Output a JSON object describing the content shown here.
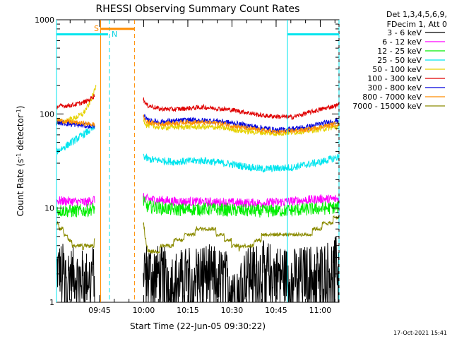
{
  "chart_data": {
    "type": "line",
    "title": "RHESSI Observing Summary Count Rates",
    "xlabel": "Start Time (22-Jun-05 09:30:22)",
    "ylabel": "Count Rate (s⁻¹ detector⁻¹)",
    "ylabel_parts": {
      "base": "Count Rate (s",
      "sup1": "-1",
      "mid": " detector",
      "sup2": "-1",
      "end": ")"
    },
    "yscale": "log",
    "ylim": [
      1,
      1000
    ],
    "xlim_minutes": [
      0,
      96
    ],
    "y_ticks": [
      {
        "value": 1,
        "label": "1"
      },
      {
        "value": 10,
        "label": "10"
      },
      {
        "value": 100,
        "label": "100"
      },
      {
        "value": 1000,
        "label": "1000"
      }
    ],
    "x_ticks": [
      {
        "minute": 14.63,
        "label": "09:45"
      },
      {
        "minute": 29.63,
        "label": "10:00"
      },
      {
        "minute": 44.63,
        "label": "10:15"
      },
      {
        "minute": 59.63,
        "label": "10:30"
      },
      {
        "minute": 74.63,
        "label": "10:45"
      },
      {
        "minute": 89.63,
        "label": "11:00"
      }
    ],
    "legend_header": [
      "Det 1,3,4,5,6,9,",
      "FDecim 1, Att 0"
    ],
    "series": [
      {
        "name": "3 - 6 keV",
        "color": "#000000",
        "segments": [
          {
            "t": [
              0,
              5,
              10,
              13
            ],
            "y": [
              2.3,
              2.0,
              1.8,
              2.2
            ]
          },
          {
            "t": [
              29.5,
              40,
              50,
              60,
              70,
              80,
              90,
              96
            ],
            "y": [
              2.3,
              1.8,
              2.2,
              1.7,
              2.3,
              1.9,
              2.2,
              2.6
            ]
          }
        ]
      },
      {
        "name": "6 - 12 keV",
        "color": "#ff00ff",
        "segments": [
          {
            "t": [
              0,
              5,
              10,
              13
            ],
            "y": [
              12,
              11.8,
              11.5,
              12.5
            ]
          },
          {
            "t": [
              29.5,
              30.5,
              40,
              50,
              60,
              70,
              80,
              90,
              96
            ],
            "y": [
              13,
              12.5,
              11.8,
              11.6,
              11.4,
              11.3,
              11.8,
              12.5,
              12.5
            ]
          }
        ]
      },
      {
        "name": "12 - 25 keV",
        "color": "#00ee00",
        "segments": [
          {
            "t": [
              0,
              5,
              10,
              13
            ],
            "y": [
              9.5,
              9.3,
              9.4,
              10
            ]
          },
          {
            "t": [
              29.5,
              30.5,
              40,
              50,
              60,
              70,
              80,
              90,
              96
            ],
            "y": [
              12,
              10.5,
              9.6,
              9.8,
              9.5,
              9.3,
              9.5,
              9.9,
              10.2
            ]
          }
        ]
      },
      {
        "name": "25 - 50 keV",
        "color": "#00e5ee",
        "segments": [
          {
            "t": [
              0,
              3,
              6,
              9,
              11,
              13
            ],
            "y": [
              40,
              45,
              52,
              60,
              66,
              72
            ]
          },
          {
            "t": [
              29.5,
              31,
              40,
              50,
              60,
              70,
              80,
              90,
              96
            ],
            "y": [
              36,
              33,
              31,
              32,
              29,
              26,
              27,
              31,
              35
            ]
          }
        ]
      },
      {
        "name": "50 - 100 keV",
        "color": "#e6d200",
        "segments": [
          {
            "t": [
              0,
              3,
              6,
              9,
              11,
              12.5,
              13.5
            ],
            "y": [
              82,
              84,
              90,
              100,
              125,
              160,
              200
            ]
          },
          {
            "t": [
              29.5,
              30.5,
              35,
              45,
              55,
              65,
              75,
              85,
              96
            ],
            "y": [
              90,
              76,
              72,
              73,
              72,
              65,
              62,
              66,
              73
            ]
          }
        ]
      },
      {
        "name": "100 - 300 keV",
        "color": "#e00000",
        "segments": [
          {
            "t": [
              0,
              3,
              6,
              9,
              11,
              13
            ],
            "y": [
              120,
              122,
              125,
              132,
              140,
              158
            ]
          },
          {
            "t": [
              29.5,
              30.5,
              35,
              40,
              50,
              60,
              70,
              80,
              90,
              96
            ],
            "y": [
              145,
              125,
              113,
              112,
              118,
              110,
              96,
              92,
              112,
              125
            ]
          }
        ]
      },
      {
        "name": "300 - 800 keV",
        "color": "#0000dd",
        "segments": [
          {
            "t": [
              0,
              5,
              10,
              13
            ],
            "y": [
              82,
              78,
              75,
              74
            ]
          },
          {
            "t": [
              29.5,
              30.5,
              35,
              45,
              55,
              65,
              75,
              85,
              96
            ],
            "y": [
              100,
              86,
              82,
              86,
              84,
              75,
              67,
              72,
              86
            ]
          }
        ]
      },
      {
        "name": "800 - 7000 keV",
        "color": "#ff8c00",
        "segments": [
          {
            "t": [
              0,
              5,
              10,
              13
            ],
            "y": [
              86,
              82,
              79,
              77
            ]
          },
          {
            "t": [
              29.5,
              30.5,
              35,
              45,
              55,
              65,
              75,
              85,
              96
            ],
            "y": [
              95,
              82,
              78,
              82,
              80,
              70,
              64,
              68,
              79
            ]
          }
        ]
      },
      {
        "name": "7000 - 15000 keV",
        "color": "#8b8b00",
        "segments": [
          {
            "t": [
              0,
              1.5,
              3,
              5,
              7,
              9,
              11,
              13
            ],
            "y": [
              7.0,
              6.0,
              5.3,
              4.3,
              3.9,
              3.7,
              3.9,
              4.3
            ]
          },
          {
            "t": [
              29.5,
              30.2,
              31,
              35,
              40,
              45,
              50,
              55,
              58,
              62,
              66,
              70,
              74,
              78,
              82,
              86,
              90,
              94,
              96
            ],
            "y": [
              7,
              4.5,
              3.6,
              3.7,
              4.3,
              5.2,
              6.2,
              5.5,
              4.6,
              3.7,
              4.0,
              5.0,
              5.6,
              5.2,
              4.9,
              5.4,
              6.4,
              7.4,
              8.0
            ]
          }
        ]
      }
    ],
    "annotations": {
      "saa_label": "S",
      "night_label": "N",
      "saa_bar": {
        "start": 15,
        "end": 26.5,
        "y": 800
      },
      "day_bars": [
        {
          "start": 0,
          "end": 17.5,
          "y": 700
        },
        {
          "start": 78.5,
          "end": 96,
          "y": 700
        }
      ],
      "solid_cyan_lines": [
        0,
        78.5
      ],
      "dashed_cyan_lines": [
        18,
        96
      ],
      "solid_orange_lines": [
        15
      ],
      "dashed_orange_lines": [
        26.5
      ]
    },
    "timestamp": "17-Oct-2021 15:41"
  }
}
